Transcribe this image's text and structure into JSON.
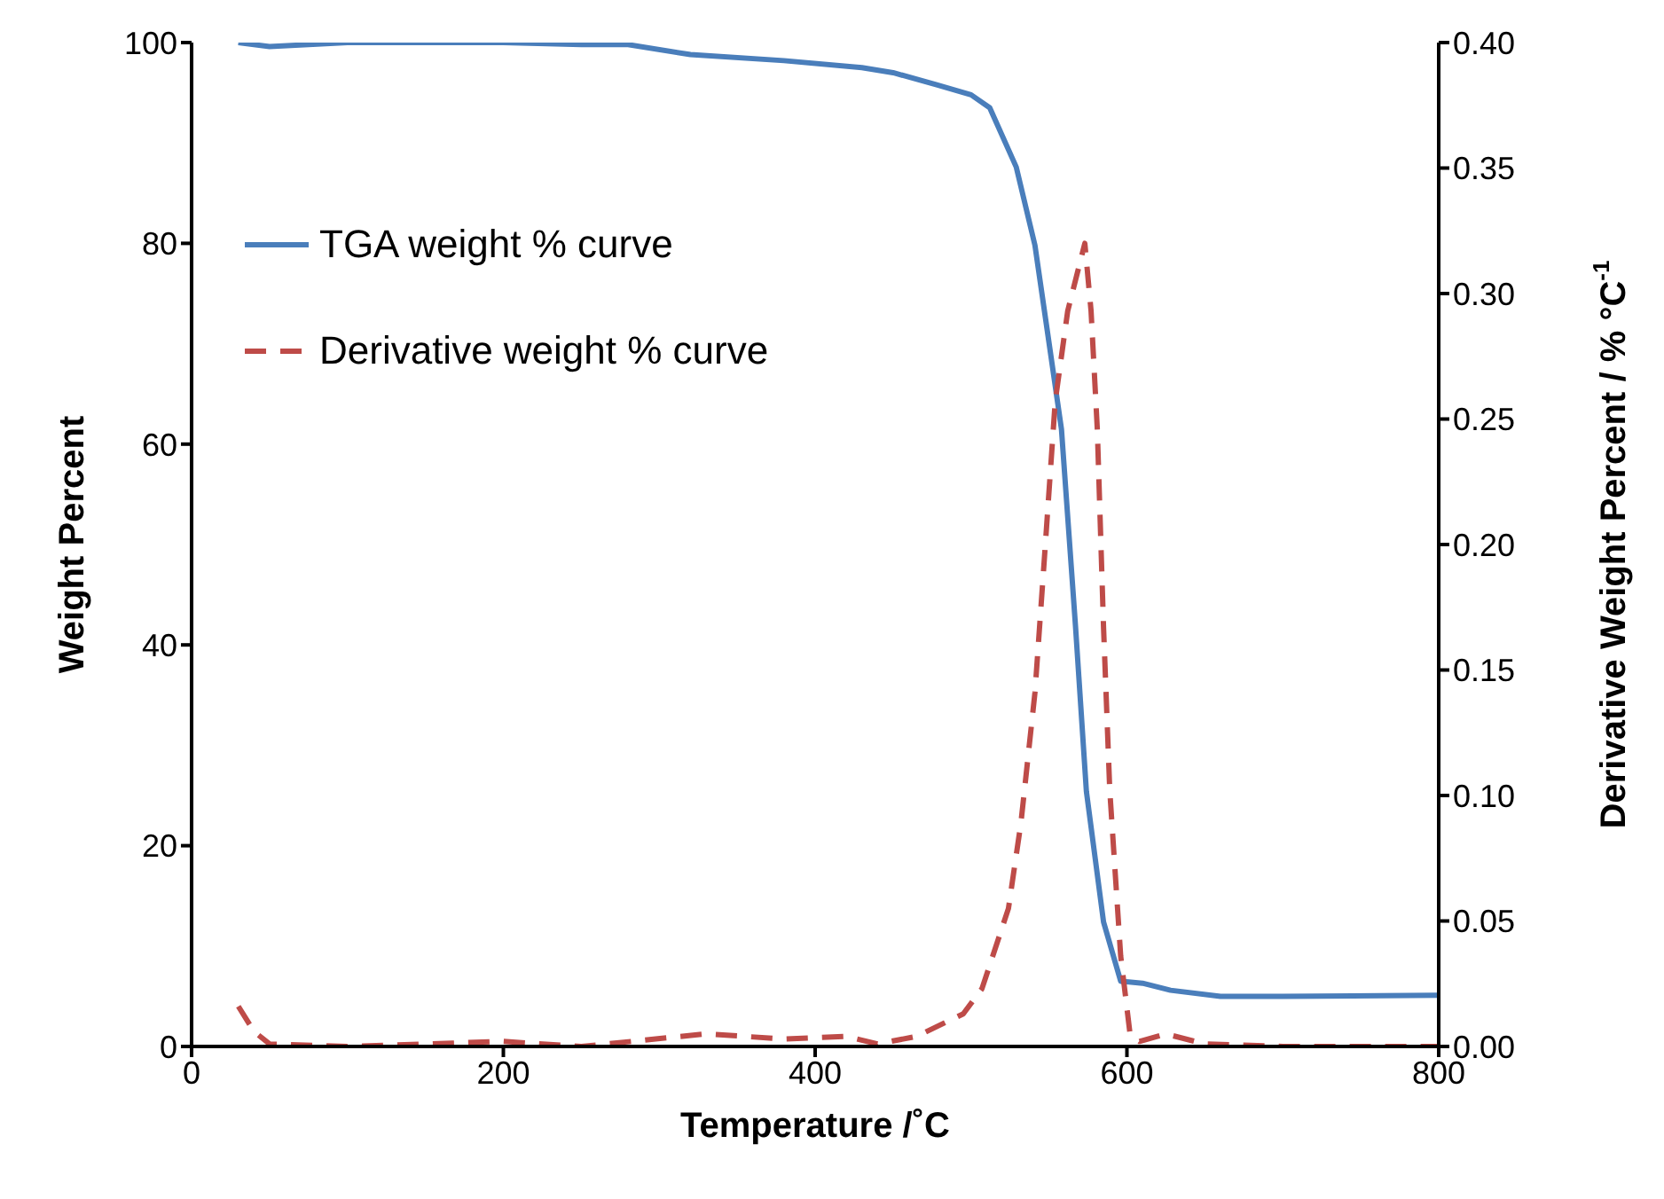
{
  "chart_data": {
    "type": "line",
    "xlabel": "Temperature /˚C",
    "ylabel": "Weight Percent",
    "y2label": "Derivative Weight Percent / % °C$^{-1}$",
    "xlim": [
      0,
      800
    ],
    "xticks": [
      0,
      200,
      400,
      600,
      800
    ],
    "ylim": [
      0,
      100
    ],
    "yticks": [
      0,
      20,
      40,
      60,
      80,
      100
    ],
    "y2lim": [
      0,
      0.4
    ],
    "y2ticks": [
      {
        "value": 0,
        "label": "0.00"
      },
      {
        "value": 0.05,
        "label": "0.05"
      },
      {
        "value": 0.1,
        "label": "0.10"
      },
      {
        "value": 0.15,
        "label": "0.15"
      },
      {
        "value": 0.2,
        "label": "0.20"
      },
      {
        "value": 0.25,
        "label": "0.25"
      },
      {
        "value": 0.3,
        "label": "0.30"
      },
      {
        "value": 0.35,
        "label": "0.35"
      },
      {
        "value": 0.4,
        "label": "0.40"
      }
    ],
    "grid": false,
    "legend": "top left",
    "marker": "none",
    "series": [
      {
        "name": "TGA weight % curve",
        "color": "#4a7ebb",
        "line_style": "solid",
        "x": [
          30,
          50,
          100,
          150,
          200,
          250,
          280,
          320,
          380,
          430,
          450,
          478,
          500,
          512,
          529,
          541,
          549,
          558,
          567,
          574,
          585,
          596,
          610,
          628,
          660,
          700,
          800
        ],
        "values": [
          100,
          99.6,
          100,
          100,
          100,
          99.8,
          99.8,
          98.8,
          98.2,
          97.5,
          97,
          95.8,
          94.8,
          93.5,
          87.6,
          79.8,
          71.2,
          61.5,
          41.9,
          25.4,
          12.4,
          6.5,
          6.3,
          5.6,
          5,
          5,
          5.1
        ]
      },
      {
        "name": "Derivative weight % curve",
        "color": "#be4b48",
        "line_style": "dashed",
        "axis": "y2",
        "x": [
          30,
          40,
          50,
          100,
          200,
          250,
          330,
          380,
          420,
          440,
          465,
          495,
          507,
          524,
          532,
          541,
          547,
          554,
          562,
          573,
          577,
          581,
          585,
          589,
          596,
          602,
          608,
          625,
          650,
          700,
          800
        ],
        "values": [
          0.016,
          0.006,
          0.001,
          0,
          0.002,
          0,
          0.005,
          0.003,
          0.004,
          0.001,
          0.004,
          0.013,
          0.023,
          0.055,
          0.089,
          0.141,
          0.194,
          0.257,
          0.293,
          0.32,
          0.293,
          0.246,
          0.167,
          0.102,
          0.036,
          0.005,
          0.002,
          0.005,
          0.001,
          0,
          0
        ]
      }
    ]
  }
}
